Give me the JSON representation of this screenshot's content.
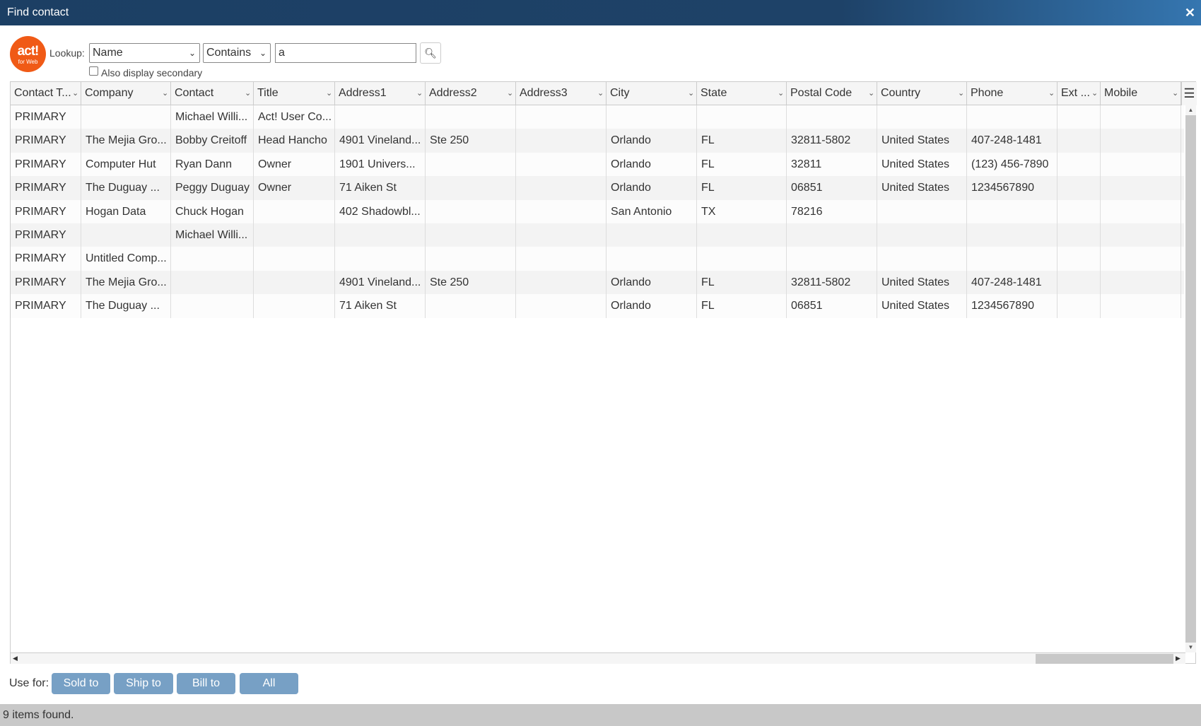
{
  "window": {
    "title": "Find contact",
    "close_icon": "close-icon"
  },
  "logo": {
    "line1": "act!",
    "line2": "for Web",
    "color": "#f05a16"
  },
  "lookup": {
    "label": "Lookup:",
    "field": "Name",
    "operator": "Contains",
    "value": "a",
    "search_icon": "search-icon",
    "secondary_label": "Also display secondary",
    "secondary_checked": false
  },
  "grid": {
    "columns": [
      "Contact T...",
      "Company",
      "Contact",
      "Title",
      "Address1",
      "Address2",
      "Address3",
      "City",
      "State",
      "Postal Code",
      "Country",
      "Phone",
      "Ext ...",
      "Mobile"
    ],
    "rows": [
      [
        "PRIMARY",
        "",
        "Michael Willi...",
        "Act! User Co...",
        "",
        "",
        "",
        "",
        "",
        "",
        "",
        "",
        "",
        ""
      ],
      [
        "PRIMARY",
        "The Mejia Gro...",
        "Bobby Creitoff",
        "Head Hancho",
        "4901 Vineland...",
        "Ste 250",
        "",
        "Orlando",
        "FL",
        "32811-5802",
        "United States",
        "407-248-1481",
        "",
        ""
      ],
      [
        "PRIMARY",
        "Computer Hut",
        "Ryan Dann",
        "Owner",
        "1901 Univers...",
        "",
        "",
        "Orlando",
        "FL",
        "32811",
        "United States",
        "(123) 456-7890",
        "",
        ""
      ],
      [
        "PRIMARY",
        "The Duguay ...",
        "Peggy Duguay",
        "Owner",
        "71 Aiken St",
        "",
        "",
        "Orlando",
        "FL",
        "06851",
        "United States",
        "1234567890",
        "",
        ""
      ],
      [
        "PRIMARY",
        "Hogan Data",
        "Chuck Hogan",
        "",
        "402 Shadowbl...",
        "",
        "",
        "San Antonio",
        "TX",
        "78216",
        "",
        "",
        "",
        ""
      ],
      [
        "PRIMARY",
        "",
        "Michael Willi...",
        "",
        "",
        "",
        "",
        "",
        "",
        "",
        "",
        "",
        "",
        ""
      ],
      [
        "PRIMARY",
        "Untitled Comp...",
        "",
        "",
        "",
        "",
        "",
        "",
        "",
        "",
        "",
        "",
        "",
        ""
      ],
      [
        "PRIMARY",
        "The Mejia Gro...",
        "",
        "",
        "4901 Vineland...",
        "Ste 250",
        "",
        "Orlando",
        "FL",
        "32811-5802",
        "United States",
        "407-248-1481",
        "",
        ""
      ],
      [
        "PRIMARY",
        "The Duguay ...",
        "",
        "",
        "71 Aiken St",
        "",
        "",
        "Orlando",
        "FL",
        "06851",
        "United States",
        "1234567890",
        "",
        ""
      ]
    ]
  },
  "footer": {
    "use_for_label": "Use for:",
    "buttons": [
      "Sold to",
      "Ship to",
      "Bill to",
      "All"
    ],
    "button_color": "#77a0c5"
  },
  "status": "9 items found."
}
